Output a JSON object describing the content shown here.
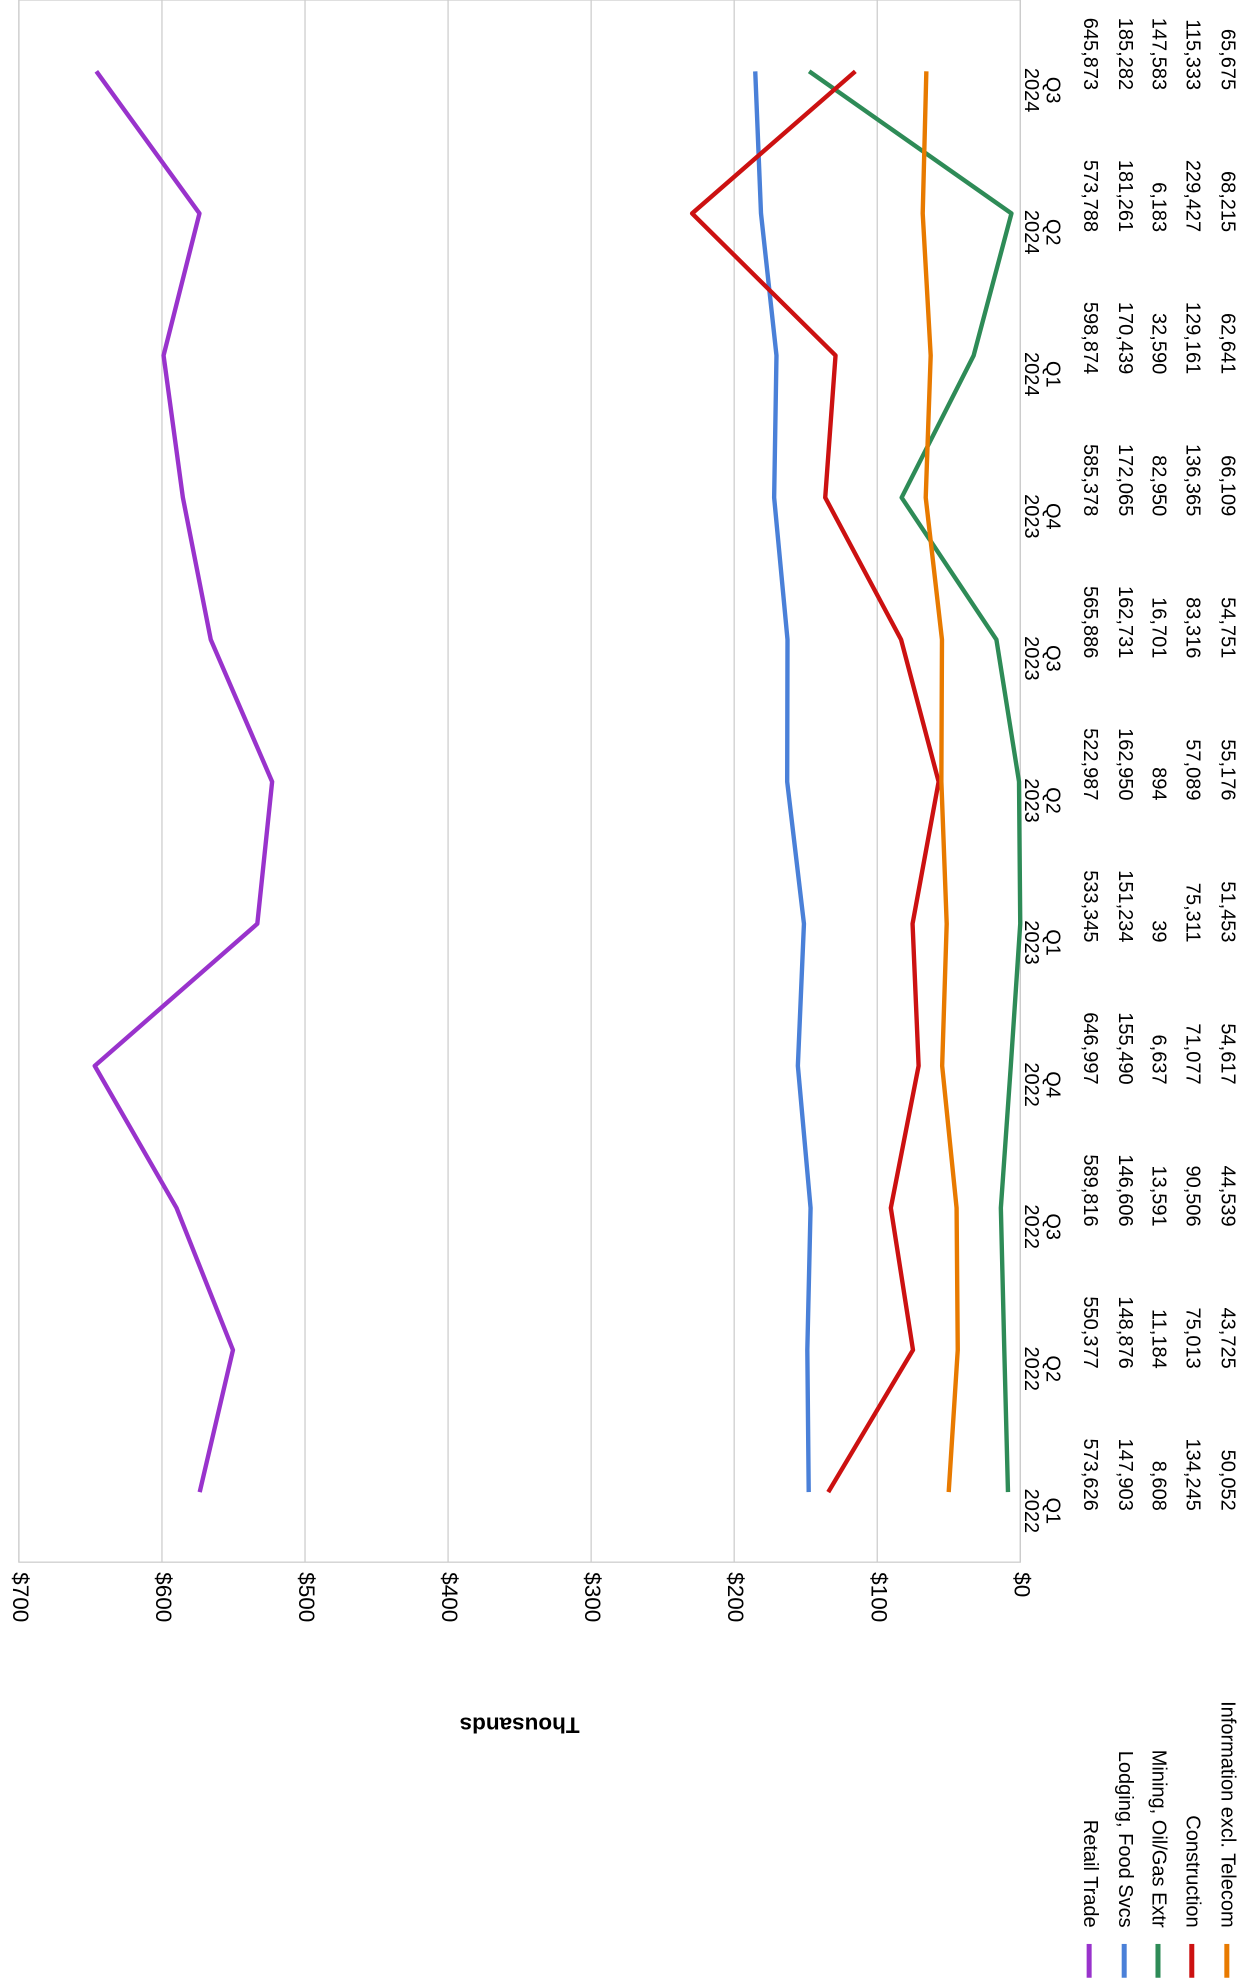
{
  "chart_data": {
    "type": "line",
    "y_label": "Thousands",
    "categories": [
      [
        "2022",
        "Q1"
      ],
      [
        "2022",
        "Q2"
      ],
      [
        "2022",
        "Q3"
      ],
      [
        "2022",
        "Q4"
      ],
      [
        "2023",
        "Q1"
      ],
      [
        "2023",
        "Q2"
      ],
      [
        "2023",
        "Q3"
      ],
      [
        "2023",
        "Q4"
      ],
      [
        "2024",
        "Q1"
      ],
      [
        "2024",
        "Q2"
      ],
      [
        "2024",
        "Q3"
      ]
    ],
    "ylim": [
      0,
      700
    ],
    "yticks": [
      {
        "value": 0,
        "label": "$0"
      },
      {
        "value": 100,
        "label": "$100"
      },
      {
        "value": 200,
        "label": "$200"
      },
      {
        "value": 300,
        "label": "$300"
      },
      {
        "value": 400,
        "label": "$400"
      },
      {
        "value": 500,
        "label": "$500"
      },
      {
        "value": 600,
        "label": "$600"
      },
      {
        "value": 700,
        "label": "$700"
      }
    ],
    "grid": true,
    "legend": "bottom",
    "series": [
      {
        "name": "Retail Trade",
        "color": "#9933cc",
        "values": [
          573.626,
          550.377,
          589.816,
          646.997,
          533.345,
          522.987,
          565.886,
          585.378,
          598.874,
          573.788,
          645.873
        ],
        "value_labels": [
          "573,626",
          "550,377",
          "589,816",
          "646,997",
          "533,345",
          "522,987",
          "565,886",
          "585,378",
          "598,874",
          "573,788",
          "645,873"
        ]
      },
      {
        "name": "Lodging, Food Svcs",
        "color": "#4a80d8",
        "values": [
          147.903,
          148.876,
          146.606,
          155.49,
          151.234,
          162.95,
          162.731,
          172.065,
          170.439,
          181.261,
          185.282
        ],
        "value_labels": [
          "147,903",
          "148,876",
          "146,606",
          "155,490",
          "151,234",
          "162,950",
          "162,731",
          "172,065",
          "170,439",
          "181,261",
          "185,282"
        ]
      },
      {
        "name": "Mining, Oil/Gas Extr",
        "color": "#2e8b57",
        "values": [
          8.608,
          11.184,
          13.591,
          6.637,
          0.039,
          0.894,
          16.701,
          82.95,
          32.59,
          6.183,
          147.583
        ],
        "value_labels": [
          "8,608",
          "11,184",
          "13,591",
          "6,637",
          "39",
          "894",
          "16,701",
          "82,950",
          "32,590",
          "6,183",
          "147,583"
        ]
      },
      {
        "name": "Construction",
        "color": "#cc1111",
        "values": [
          134.245,
          75.013,
          90.506,
          71.077,
          75.311,
          57.089,
          83.316,
          136.365,
          129.161,
          229.427,
          115.333
        ],
        "value_labels": [
          "134,245",
          "75,013",
          "90,506",
          "71,077",
          "75,311",
          "57,089",
          "83,316",
          "136,365",
          "129,161",
          "229,427",
          "115,333"
        ]
      },
      {
        "name": "Information excl. Telecom",
        "color": "#e87a00",
        "values": [
          50.052,
          43.725,
          44.539,
          54.617,
          51.453,
          55.176,
          54.751,
          66.109,
          62.641,
          68.215,
          65.675
        ],
        "value_labels": [
          "50,052",
          "43,725",
          "44,539",
          "54,617",
          "51,453",
          "55,176",
          "54,751",
          "66,109",
          "62,641",
          "68,215",
          "65,675"
        ]
      }
    ]
  }
}
